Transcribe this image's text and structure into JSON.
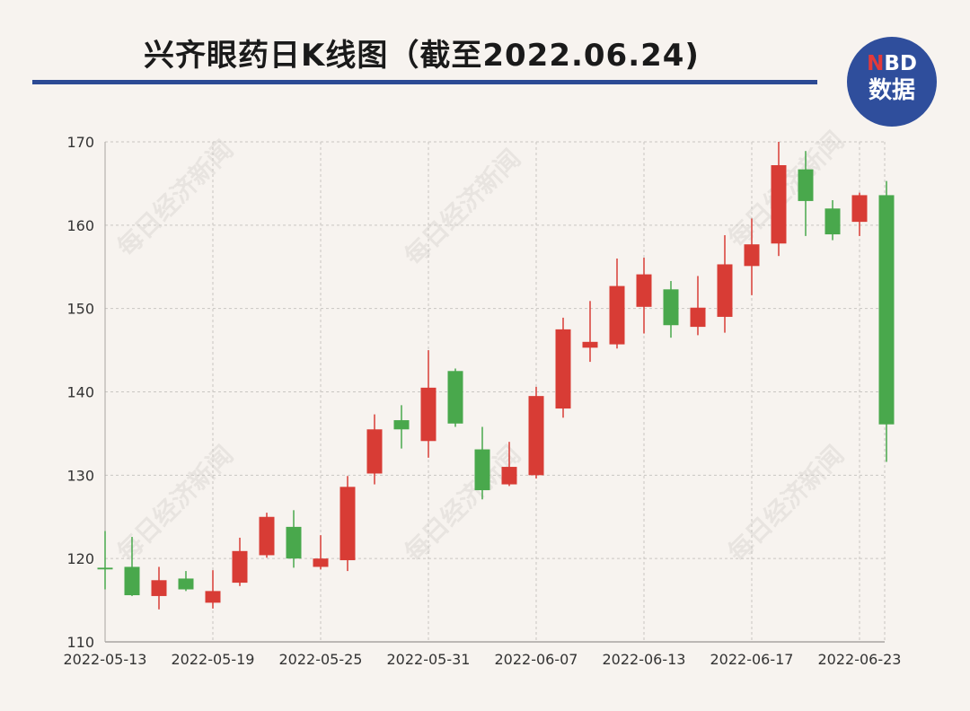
{
  "title": "兴齐眼药日K线图（截至2022.06.24)",
  "logo": {
    "line1_accent": "N",
    "line1_rest": "BD",
    "line2": "数据"
  },
  "watermark_text": "每日经济新闻",
  "colors": {
    "up": "#d83c35",
    "down": "#49a84c",
    "grid": "#c9c6c2",
    "axis": "#a8a5a2",
    "tick_text": "#333333",
    "title_rule": "#2c4a94",
    "logo_bg": "#2f4e9c"
  },
  "chart_data": {
    "type": "candlestick",
    "title": "兴齐眼药日K线图（截至2022.06.24)",
    "xlabel": "",
    "ylabel": "",
    "ylim": [
      110,
      170
    ],
    "yticks": [
      110,
      120,
      130,
      140,
      150,
      160,
      170
    ],
    "xtick_labels": [
      "2022-05-13",
      "2022-05-19",
      "2022-05-25",
      "2022-05-31",
      "2022-06-07",
      "2022-06-13",
      "2022-06-17",
      "2022-06-23"
    ],
    "grid": true,
    "candles": [
      {
        "date": "2022-05-13",
        "open": 118.9,
        "close": 118.7,
        "high": 123.3,
        "low": 116.3
      },
      {
        "date": "2022-05-16",
        "open": 119.0,
        "close": 115.6,
        "high": 122.6,
        "low": 115.5
      },
      {
        "date": "2022-05-17",
        "open": 115.5,
        "close": 117.4,
        "high": 119.0,
        "low": 113.9
      },
      {
        "date": "2022-05-18",
        "open": 117.6,
        "close": 116.3,
        "high": 118.5,
        "low": 116.1
      },
      {
        "date": "2022-05-19",
        "open": 114.7,
        "close": 116.1,
        "high": 118.6,
        "low": 114.0
      },
      {
        "date": "2022-05-20",
        "open": 117.1,
        "close": 120.9,
        "high": 122.5,
        "low": 116.7
      },
      {
        "date": "2022-05-23",
        "open": 120.4,
        "close": 125.0,
        "high": 125.5,
        "low": 120.1
      },
      {
        "date": "2022-05-24",
        "open": 123.8,
        "close": 120.0,
        "high": 125.8,
        "low": 118.9
      },
      {
        "date": "2022-05-25",
        "open": 119.0,
        "close": 120.0,
        "high": 122.8,
        "low": 118.7
      },
      {
        "date": "2022-05-26",
        "open": 119.8,
        "close": 128.6,
        "high": 129.9,
        "low": 118.5
      },
      {
        "date": "2022-05-27",
        "open": 130.2,
        "close": 135.5,
        "high": 137.3,
        "low": 128.9
      },
      {
        "date": "2022-05-30",
        "open": 136.6,
        "close": 135.5,
        "high": 138.4,
        "low": 133.2
      },
      {
        "date": "2022-05-31",
        "open": 134.1,
        "close": 140.5,
        "high": 145.0,
        "low": 132.1
      },
      {
        "date": "2022-06-01",
        "open": 142.5,
        "close": 136.2,
        "high": 142.8,
        "low": 135.8
      },
      {
        "date": "2022-06-02",
        "open": 133.1,
        "close": 128.2,
        "high": 135.8,
        "low": 127.1
      },
      {
        "date": "2022-06-06",
        "open": 128.9,
        "close": 131.0,
        "high": 134.0,
        "low": 128.7
      },
      {
        "date": "2022-06-07",
        "open": 130.0,
        "close": 139.5,
        "high": 140.6,
        "low": 129.6
      },
      {
        "date": "2022-06-08",
        "open": 138.0,
        "close": 147.5,
        "high": 148.9,
        "low": 136.9
      },
      {
        "date": "2022-06-09",
        "open": 145.3,
        "close": 146.0,
        "high": 150.9,
        "low": 143.6
      },
      {
        "date": "2022-06-10",
        "open": 145.7,
        "close": 152.7,
        "high": 156.0,
        "low": 145.2
      },
      {
        "date": "2022-06-13",
        "open": 150.2,
        "close": 154.1,
        "high": 156.1,
        "low": 147.0
      },
      {
        "date": "2022-06-14",
        "open": 152.3,
        "close": 148.0,
        "high": 153.3,
        "low": 146.5
      },
      {
        "date": "2022-06-15",
        "open": 147.8,
        "close": 150.1,
        "high": 153.9,
        "low": 146.8
      },
      {
        "date": "2022-06-16",
        "open": 149.0,
        "close": 155.3,
        "high": 158.8,
        "low": 147.1
      },
      {
        "date": "2022-06-17",
        "open": 155.1,
        "close": 157.7,
        "high": 160.8,
        "low": 151.6
      },
      {
        "date": "2022-06-20",
        "open": 157.8,
        "close": 167.2,
        "high": 170.0,
        "low": 156.3
      },
      {
        "date": "2022-06-21",
        "open": 166.7,
        "close": 162.9,
        "high": 168.9,
        "low": 158.7
      },
      {
        "date": "2022-06-22",
        "open": 162.0,
        "close": 158.9,
        "high": 163.0,
        "low": 158.2
      },
      {
        "date": "2022-06-23",
        "open": 160.4,
        "close": 163.6,
        "high": 163.9,
        "low": 158.7
      },
      {
        "date": "2022-06-24",
        "open": 163.6,
        "close": 136.1,
        "high": 165.3,
        "low": 131.6
      }
    ]
  }
}
